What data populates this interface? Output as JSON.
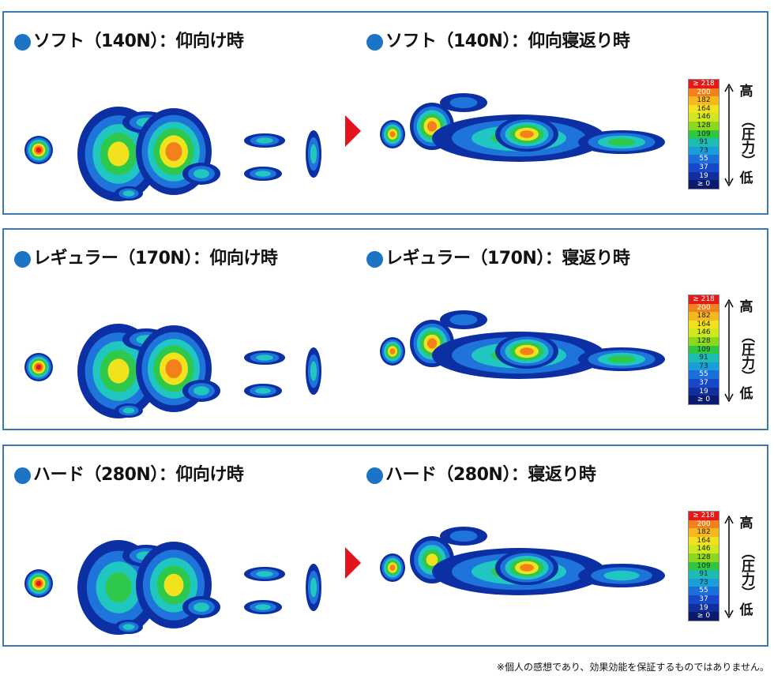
{
  "panels": [
    {
      "left_title": "ソフト（140N）：仰向け時",
      "right_title": "ソフト（140N）：仰向寝返り時",
      "show_arrow": true
    },
    {
      "left_title": "レギュラー（170N）：仰向け時",
      "right_title": "レギュラー（170N）：寝返り時",
      "show_arrow": false
    },
    {
      "left_title": "ハード（280N）：仰向け時",
      "right_title": "ハード（280N）：寝返り時",
      "show_arrow": true
    }
  ],
  "legend": {
    "values": [
      "≥ 218",
      "200",
      "182",
      "164",
      "146",
      "128",
      "109",
      "91",
      "73",
      "55",
      "37",
      "19",
      "≥ 0"
    ],
    "colors": [
      "#e81818",
      "#f4801c",
      "#f6b81e",
      "#f2e21e",
      "#cfe81e",
      "#8cd81c",
      "#2ec840",
      "#1cbcb4",
      "#1a9ed8",
      "#1a70d8",
      "#1648c8",
      "#102e9e",
      "#0a1a6e"
    ],
    "high_label": "高",
    "pressure_label": "（圧力）",
    "low_label": "低"
  },
  "heat_colors": {
    "low": "#0c2fa4",
    "mid_low": "#1f74dc",
    "mid": "#20c6c0",
    "mid_high": "#2ec84a",
    "high": "#f2e21e",
    "very_high": "#f4801c",
    "peak": "#e81818"
  },
  "footnote": "※個人の感想であり、効果効能を保証するものではありません。"
}
